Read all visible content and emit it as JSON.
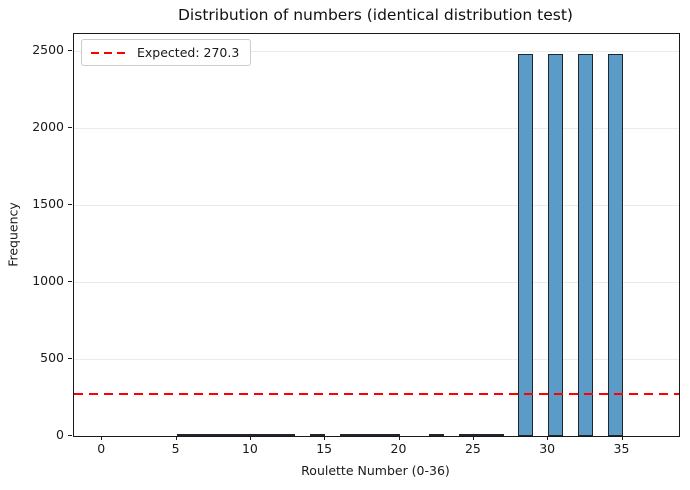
{
  "figure": {
    "background": "#ffffff"
  },
  "chart_data": {
    "type": "bar",
    "title": "Distribution of numbers (identical distribution test)",
    "xlabel": "Roulette Number (0-36)",
    "ylabel": "Frequency",
    "categories": [
      0,
      1,
      2,
      3,
      4,
      5,
      6,
      7,
      8,
      9,
      10,
      11,
      12,
      13,
      14,
      15,
      16,
      17,
      18,
      19,
      20,
      21,
      22,
      23,
      24,
      25,
      26,
      27,
      28,
      29,
      30,
      31,
      32,
      33,
      34,
      35,
      36
    ],
    "values": [
      0,
      0,
      0,
      0,
      0,
      4,
      5,
      4,
      5,
      4,
      5,
      4,
      5,
      0,
      4,
      0,
      5,
      4,
      5,
      4,
      0,
      0,
      5,
      0,
      4,
      5,
      4,
      0,
      2481,
      0,
      2481,
      0,
      2481,
      0,
      2481,
      0,
      0
    ],
    "bar_color": "#5b9bc8",
    "bar_edge_color": "#22262c",
    "bin_width": 1,
    "xlim": [
      -1.9,
      38.8
    ],
    "ylim": [
      0,
      2609
    ],
    "xticks": [
      0,
      5,
      10,
      15,
      20,
      25,
      30,
      35
    ],
    "yticks": [
      0,
      500,
      1000,
      1500,
      2000,
      2500
    ],
    "grid": "horizontal",
    "grid_color": "#ebebeb",
    "reference_line": {
      "value": 270.3,
      "color": "#ff0000",
      "style": "dashed",
      "label": "Expected: 270.3"
    },
    "legend": {
      "position": "upper-left",
      "entries": [
        {
          "label": "Expected: 270.3",
          "color": "#ff0000",
          "line_style": "dashed"
        }
      ]
    }
  }
}
